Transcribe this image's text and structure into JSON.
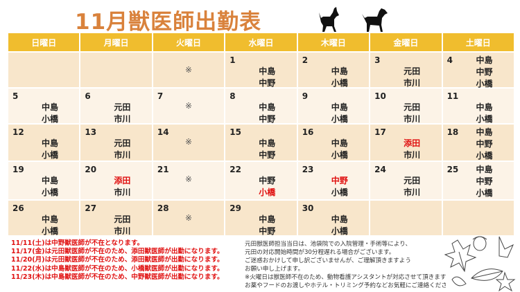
{
  "title": "11月獣医師出勤表",
  "weekdays": [
    "日曜日",
    "月曜日",
    "火曜日",
    "水曜日",
    "木曜日",
    "金曜日",
    "土曜日"
  ],
  "colors": {
    "header": "#f0bd2e",
    "title": "#d9823c",
    "row_dark": "#f8e6cb",
    "row_light": "#fcf3e7",
    "alert": "#e01010"
  },
  "weeks": [
    [
      {
        "day": "",
        "staff": []
      },
      {
        "day": "",
        "staff": []
      },
      {
        "day": "",
        "mark": "※"
      },
      {
        "day": "1",
        "staff": [
          "中島",
          "中野"
        ]
      },
      {
        "day": "2",
        "staff": [
          "中島",
          "小橋"
        ]
      },
      {
        "day": "3",
        "staff": [
          "元田",
          "市川"
        ]
      },
      {
        "day": "4",
        "staff": [
          "中島",
          "中野",
          "小橋"
        ]
      }
    ],
    [
      {
        "day": "5",
        "staff": [
          "中島",
          "小橋"
        ]
      },
      {
        "day": "6",
        "staff": [
          "元田",
          "市川"
        ]
      },
      {
        "day": "7",
        "mark": "※"
      },
      {
        "day": "8",
        "staff": [
          "中島",
          "中野"
        ]
      },
      {
        "day": "9",
        "staff": [
          "中島",
          "小橋"
        ]
      },
      {
        "day": "10",
        "staff": [
          "元田",
          "市川"
        ]
      },
      {
        "day": "11",
        "staff": [
          "中島",
          "小橋"
        ]
      }
    ],
    [
      {
        "day": "12",
        "staff": [
          "中島",
          "小橋"
        ]
      },
      {
        "day": "13",
        "staff": [
          "元田",
          "市川"
        ]
      },
      {
        "day": "14",
        "mark": "※"
      },
      {
        "day": "15",
        "staff": [
          "中島",
          "中野"
        ]
      },
      {
        "day": "16",
        "staff": [
          "中島",
          "小橋"
        ]
      },
      {
        "day": "17",
        "staff": [
          "添田",
          "市川"
        ],
        "red": [
          0
        ]
      },
      {
        "day": "18",
        "staff": [
          "中島",
          "中野",
          "小橋"
        ]
      }
    ],
    [
      {
        "day": "19",
        "staff": [
          "中島",
          "小橋"
        ]
      },
      {
        "day": "20",
        "staff": [
          "添田",
          "市川"
        ],
        "red": [
          0
        ]
      },
      {
        "day": "21",
        "mark": "※"
      },
      {
        "day": "22",
        "staff": [
          "中野",
          "小橋"
        ],
        "red": [
          1
        ]
      },
      {
        "day": "23",
        "staff": [
          "中野",
          "小橋"
        ],
        "red": [
          0
        ]
      },
      {
        "day": "24",
        "staff": [
          "元田",
          "市川"
        ]
      },
      {
        "day": "25",
        "staff": [
          "中島",
          "中野",
          "小橋"
        ]
      }
    ],
    [
      {
        "day": "26",
        "staff": [
          "中島",
          "小橋"
        ]
      },
      {
        "day": "27",
        "staff": [
          "元田",
          "市川"
        ]
      },
      {
        "day": "28",
        "mark": "※"
      },
      {
        "day": "29",
        "staff": [
          "中島",
          "中野"
        ]
      },
      {
        "day": "30",
        "staff": [
          "中島",
          "小橋"
        ]
      },
      {
        "day": "",
        "staff": []
      },
      {
        "day": "",
        "staff": []
      }
    ]
  ],
  "notices": [
    "11/11(土)は中野獣医師が不在となります。",
    "11/17(金)は元田獣医師が不在のため、添田獣医師が出勤になります。",
    "11/20(月)は元田獣医師が不在のため、添田獣医師が出勤になります。",
    "11/22(水)は中島獣医師が不在のため、小橋獣医師が出勤になります。",
    "11/23(木)は中島獣医師が不在のため、中野獣医師が出勤になります。"
  ],
  "info": [
    "元田獣医師担当当日は、池袋院での入院管理・手術等により、",
    "元田の対応開始時間が30分程遅れる場合がございます。",
    "ご迷惑おかけして申し訳ございませんが、ご理解頂きますよう",
    "お願い申し上げます。",
    "※火曜日は獣医師不在のため、動物看護アシスタントが対応させて頂きます。",
    "お薬やフードのお渡しやホテル・トリミング予約などお気軽にご連絡ください。"
  ]
}
